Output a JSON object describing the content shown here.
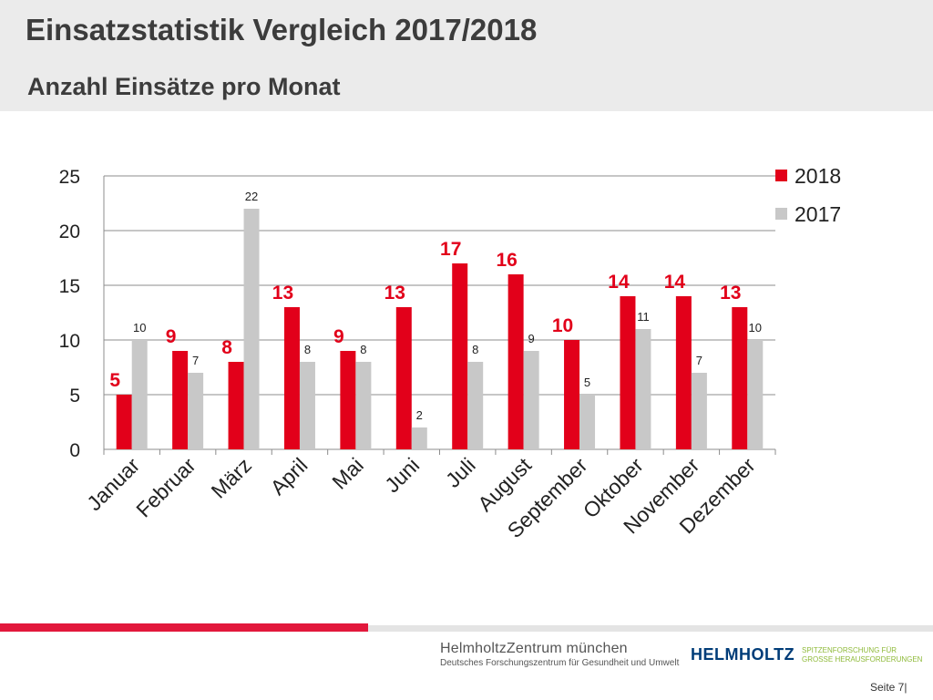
{
  "header": {
    "title": "Einsatzstatistik Vergleich 2017/2018",
    "subtitle": "Anzahl Einsätze pro Monat"
  },
  "chart_data": {
    "type": "bar",
    "categories": [
      "Januar",
      "Februar",
      "März",
      "April",
      "Mai",
      "Juni",
      "Juli",
      "August",
      "September",
      "Oktober",
      "November",
      "Dezember"
    ],
    "series": [
      {
        "name": "2018",
        "values": [
          5,
          9,
          8,
          13,
          9,
          13,
          17,
          16,
          10,
          14,
          14,
          13
        ],
        "color": "#e2001a"
      },
      {
        "name": "2017",
        "values": [
          10,
          7,
          22,
          8,
          8,
          2,
          8,
          9,
          5,
          11,
          7,
          10
        ],
        "color": "#c8c8c8"
      }
    ],
    "ylim": [
      0,
      25
    ],
    "yticks": [
      0,
      5,
      10,
      15,
      20,
      25
    ],
    "grid": true,
    "legend": "top-right",
    "data_labels": true
  },
  "footer": {
    "org_name": "HelmholtzZentrum münchen",
    "org_subtitle": "Deutsches Forschungszentrum für Gesundheit und Umwelt",
    "helmholtz": "HELMHOLTZ",
    "tagline_1": "SPITZENFORSCHUNG FÜR",
    "tagline_2": "GROSSE HERAUSFORDERUNGEN",
    "page": "Seite 7|"
  },
  "colors": {
    "accent_red": "#e2183c",
    "helmholtz_blue": "#003c78",
    "tagline_green": "#8fba3a"
  }
}
